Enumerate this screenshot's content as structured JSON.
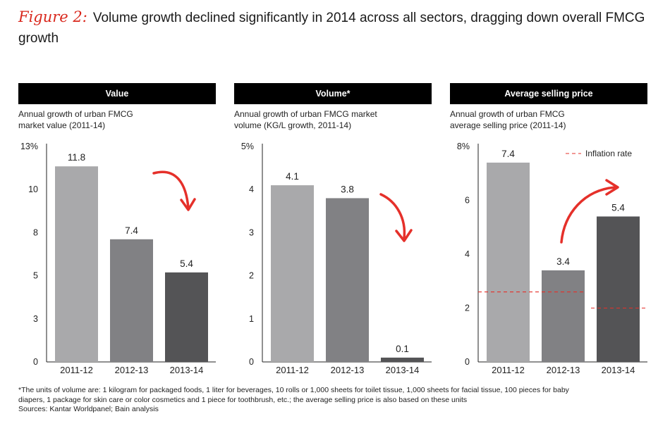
{
  "title": {
    "figure_label": "Figure 2:",
    "text": "Volume growth declined significantly in 2014 across all sectors, dragging down overall FMCG growth"
  },
  "colors": {
    "bar_2011_12": "#a9a9ab",
    "bar_2012_13": "#818184",
    "bar_2013_14": "#545456",
    "accent_red": "#e5302a",
    "header_bg": "#000000"
  },
  "chart_data": [
    {
      "type": "bar",
      "header": "Value",
      "subtitle_lines": [
        "Annual growth of urban FMCG",
        "market value (2011-14)"
      ],
      "categories": [
        "2011-12",
        "2012-13",
        "2013-14"
      ],
      "values": [
        11.8,
        7.4,
        5.4
      ],
      "value_labels": [
        "11.8",
        "7.4",
        "5.4"
      ],
      "ylim": [
        0,
        13
      ],
      "yticks": [
        0,
        2.6,
        5.2,
        7.8,
        10.4,
        13
      ],
      "ytick_labels": [
        "0",
        "3",
        "5",
        "8",
        "10",
        "13%"
      ],
      "arrow": "down"
    },
    {
      "type": "bar",
      "header": "Volume*",
      "subtitle_lines": [
        "Annual growth of urban FMCG market",
        "volume (KG/L growth, 2011-14)"
      ],
      "categories": [
        "2011-12",
        "2012-13",
        "2013-14"
      ],
      "values": [
        4.1,
        3.8,
        0.1
      ],
      "value_labels": [
        "4.1",
        "3.8",
        "0.1"
      ],
      "ylim": [
        0,
        5
      ],
      "yticks": [
        0,
        1,
        2,
        3,
        4,
        5
      ],
      "ytick_labels": [
        "0",
        "1",
        "2",
        "3",
        "4",
        "5%"
      ],
      "arrow": "down"
    },
    {
      "type": "bar",
      "header": "Average selling price",
      "subtitle_lines": [
        "Annual growth of urban FMCG",
        "average selling price (2011-14)"
      ],
      "categories": [
        "2011-12",
        "2012-13",
        "2013-14"
      ],
      "values": [
        7.4,
        3.4,
        5.4
      ],
      "value_labels": [
        "7.4",
        "3.4",
        "5.4"
      ],
      "ylim": [
        0,
        8
      ],
      "yticks": [
        0,
        2,
        4,
        6,
        8
      ],
      "ytick_labels": [
        "0",
        "2",
        "4",
        "6",
        "8%"
      ],
      "arrow": "up",
      "legend": "Inflation rate",
      "inflation_segments": [
        {
          "from_category": 0,
          "to_category": 1,
          "value": 2.6
        },
        {
          "from_category": 2,
          "to_category": 2,
          "value": 2.0
        }
      ]
    }
  ],
  "footnote": {
    "lines": [
      "*The units of volume are: 1 kilogram for packaged foods, 1 liter for beverages, 10 rolls or 1,000 sheets for toilet tissue, 1,000 sheets for facial tissue, 100 pieces for baby",
      "diapers, 1 package for skin care or color cosmetics and 1 piece for toothbrush, etc.; the average selling price is also based on these units"
    ],
    "sources": "Sources: Kantar Worldpanel; Bain analysis"
  }
}
